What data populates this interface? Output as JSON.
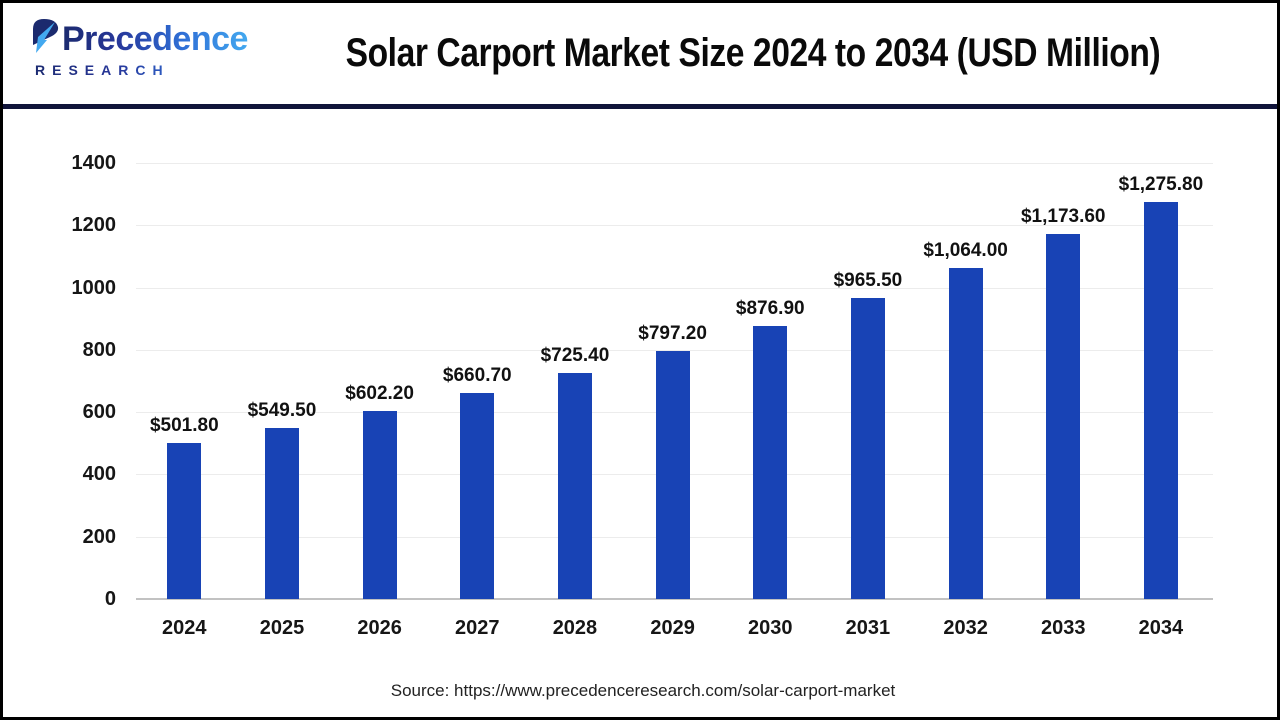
{
  "header": {
    "logo": {
      "brand_name": "Precedence",
      "brand_sub": "RESEARCH"
    },
    "title": "Solar Carport Market Size 2024 to 2034 (USD Million)"
  },
  "chart_data": {
    "type": "bar",
    "title": "Solar Carport Market Size 2024 to 2034 (USD Million)",
    "categories": [
      "2024",
      "2025",
      "2026",
      "2027",
      "2028",
      "2029",
      "2030",
      "2031",
      "2032",
      "2033",
      "2034"
    ],
    "values": [
      501.8,
      549.5,
      602.2,
      660.7,
      725.4,
      797.2,
      876.9,
      965.5,
      1064.0,
      1173.6,
      1275.8
    ],
    "value_labels": [
      "$501.80",
      "$549.50",
      "$602.20",
      "$660.70",
      "$725.40",
      "$797.20",
      "$876.90",
      "$965.50",
      "$1,064.00",
      "$1,173.60",
      "$1,275.80"
    ],
    "xlabel": "",
    "ylabel": "",
    "ylim": [
      0,
      1400
    ],
    "yticks": [
      0,
      200,
      400,
      600,
      800,
      1000,
      1200,
      1400
    ],
    "grid": true,
    "legend": "none",
    "bar_color": "#1843b5"
  },
  "footer": {
    "source": "Source: https://www.precedenceresearch.com/solar-carport-market"
  },
  "colors": {
    "divider_navy": "#10143a",
    "grid": "#ececec",
    "axis": "#c2c2c2",
    "logo_navy": "#1b2a6e",
    "logo_blue": "#2f7ce0"
  }
}
